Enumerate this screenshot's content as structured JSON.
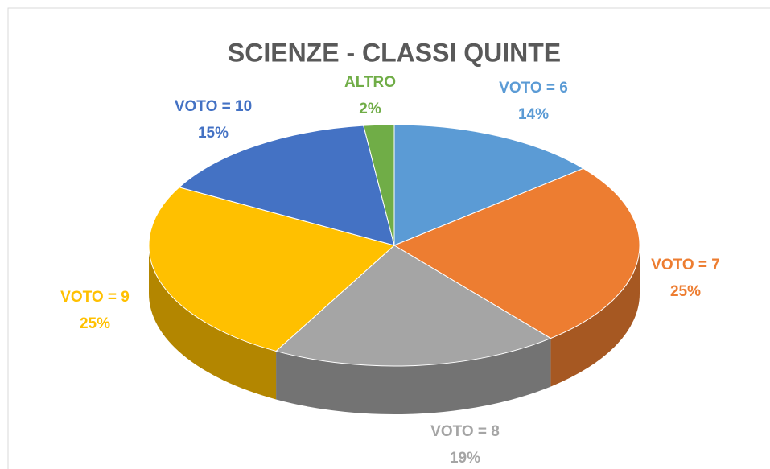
{
  "chart_data": {
    "type": "pie",
    "title": "SCIENZE - CLASSI QUINTE",
    "categories": [
      "VOTO = 6",
      "VOTO = 7",
      "VOTO = 8",
      "VOTO = 9",
      "VOTO = 10",
      "ALTRO"
    ],
    "values": [
      14,
      25,
      19,
      25,
      15,
      2
    ],
    "value_labels": [
      "14%",
      "25%",
      "19%",
      "25%",
      "15%",
      "2%"
    ],
    "colors": [
      "#5b9bd5",
      "#ed7d31",
      "#a5a5a5",
      "#ffc000",
      "#4472c4",
      "#70ad47"
    ]
  }
}
